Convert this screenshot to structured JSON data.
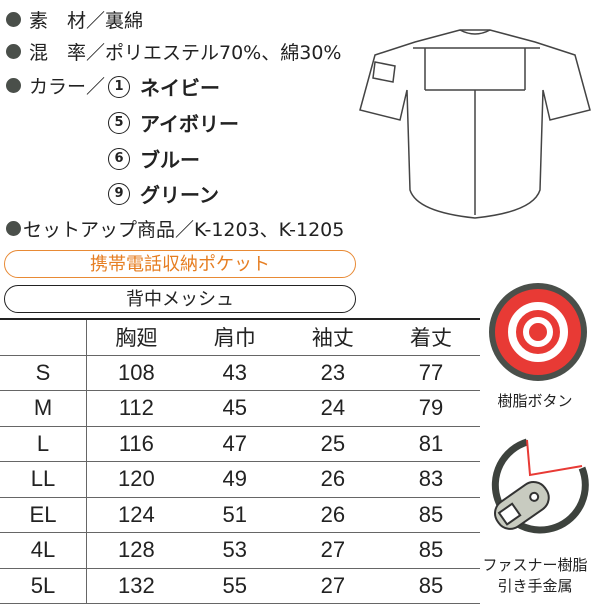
{
  "specs": {
    "material": "素　材／裏綿",
    "blend": "混　率／ポリエステル70%、綿30%",
    "color_label": "カラー／",
    "colors": [
      {
        "num": "1",
        "name": "ネイビー"
      },
      {
        "num": "5",
        "name": "アイボリー"
      },
      {
        "num": "6",
        "name": "ブルー"
      },
      {
        "num": "9",
        "name": "グリーン"
      }
    ],
    "setup": "セットアップ商品／K-1203、K-1205"
  },
  "features": {
    "phone_pocket": "携帯電話収納ポケット",
    "back_mesh": "背中メッシュ"
  },
  "size_table": {
    "headers": [
      "",
      "胸廻",
      "肩巾",
      "袖丈",
      "着丈"
    ],
    "rows": [
      [
        "S",
        "108",
        "43",
        "23",
        "77"
      ],
      [
        "M",
        "112",
        "45",
        "24",
        "79"
      ],
      [
        "L",
        "116",
        "47",
        "25",
        "81"
      ],
      [
        "LL",
        "120",
        "49",
        "26",
        "83"
      ],
      [
        "EL",
        "124",
        "51",
        "26",
        "85"
      ],
      [
        "4L",
        "128",
        "53",
        "27",
        "85"
      ],
      [
        "5L",
        "132",
        "55",
        "27",
        "85"
      ]
    ]
  },
  "icons": {
    "button_label": "樹脂ボタン",
    "zipper_label_1": "ファスナー樹脂",
    "zipper_label_2": "引き手金属"
  },
  "colors": {
    "accent_red": "#e83a35",
    "accent_orange": "#e67e22",
    "dark": "#4a4f4a"
  }
}
